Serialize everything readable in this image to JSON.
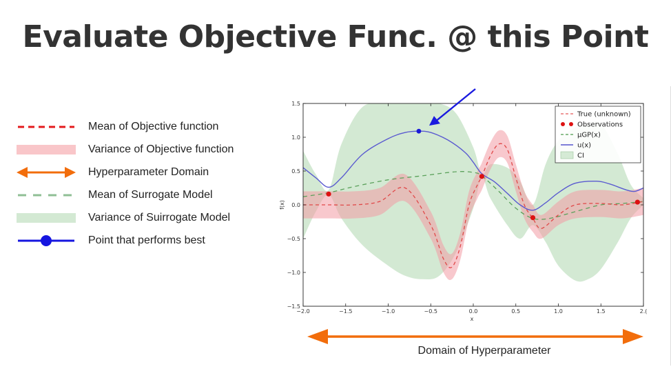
{
  "page_title": "Evaluate Objective Func. @ this Point",
  "legend_items": [
    {
      "label": "Mean of Objective function",
      "symbol": "red-dashed-line-icon",
      "color": "#e31a1c"
    },
    {
      "label": "Variance of Objective function",
      "symbol": "pink-band-icon",
      "color": "#f9c6c9"
    },
    {
      "label": "Hyperparameter Domain",
      "symbol": "orange-double-arrow-icon",
      "color": "#f26d0b"
    },
    {
      "label": "Mean of Surrogate Model",
      "symbol": "green-dashed-line-icon",
      "color": "#8fbf95"
    },
    {
      "label": "Variance of Suirrogate Model",
      "symbol": "green-band-icon",
      "color": "#d3e9d3"
    },
    {
      "label": "Point that performs best",
      "symbol": "blue-dot-line-icon",
      "color": "#1515e0"
    }
  ],
  "domain_label": "Domain of Hyperparameter",
  "chart_data": {
    "type": "line",
    "xlim": [
      -2.0,
      2.0
    ],
    "ylim": [
      -1.5,
      1.5
    ],
    "xlabel": "x",
    "ylabel": "f(x)",
    "xticks": [
      -2.0,
      -1.5,
      -1.0,
      -0.5,
      0.0,
      0.5,
      1.0,
      1.5,
      2.0
    ],
    "xtick_labels": [
      "−2.0",
      "−1.5",
      "−1.0",
      "−0.5",
      "0.0",
      "0.5",
      "1.0",
      "1.5",
      "2.("
    ],
    "yticks": [
      1.5,
      1.0,
      0.5,
      0.0,
      -0.5,
      -1.0,
      -1.5
    ],
    "ytick_labels": [
      "1.5",
      "1.0",
      "0.5",
      "0.0",
      "−0.5",
      "−1.0",
      "−1.5"
    ],
    "legend_position": "top-right",
    "legend_entries": [
      {
        "label": "True (unknown)",
        "style": "dashed",
        "color": "#e55b5b"
      },
      {
        "label": "Observations",
        "style": "dots",
        "color": "#dd1111"
      },
      {
        "label": "μGP(x)",
        "style": "dashed",
        "color": "#4c9a4c"
      },
      {
        "label": "u(x)",
        "style": "solid",
        "color": "#5555cc"
      },
      {
        "label": "CI",
        "style": "patch",
        "color": "#d5ead5"
      }
    ],
    "series": [
      {
        "name": "True (unknown)",
        "x": [
          -2.0,
          -1.7,
          -1.4,
          -1.1,
          -0.8,
          -0.5,
          -0.35,
          -0.25,
          -0.15,
          -0.05,
          0.05,
          0.1,
          0.2,
          0.3,
          0.4,
          0.5,
          0.6,
          0.7,
          0.8,
          1.0,
          1.2,
          1.5,
          1.75,
          2.0
        ],
        "y": [
          0.0,
          0.0,
          0.0,
          0.05,
          0.25,
          -0.3,
          -0.8,
          -0.92,
          -0.6,
          0.0,
          0.3,
          0.42,
          0.72,
          0.9,
          0.82,
          0.4,
          0.0,
          -0.2,
          -0.35,
          -0.15,
          0.0,
          0.02,
          0.0,
          0.05
        ]
      },
      {
        "name": "Observations",
        "x": [
          -1.7,
          0.1,
          0.7,
          1.93
        ],
        "y": [
          0.16,
          0.42,
          -0.19,
          0.04
        ]
      },
      {
        "name": "μGP(x)",
        "x": [
          -2.0,
          -1.7,
          -1.4,
          -1.0,
          -0.6,
          -0.2,
          0.0,
          0.1,
          0.3,
          0.5,
          0.7,
          0.9,
          1.2,
          1.5,
          1.75,
          2.0
        ],
        "y": [
          0.12,
          0.18,
          0.27,
          0.37,
          0.43,
          0.49,
          0.48,
          0.43,
          0.2,
          -0.05,
          -0.2,
          -0.2,
          -0.1,
          0.0,
          0.02,
          0.05
        ]
      },
      {
        "name": "u(x)",
        "x": [
          -2.0,
          -1.85,
          -1.7,
          -1.55,
          -1.3,
          -1.0,
          -0.8,
          -0.64,
          -0.5,
          -0.3,
          -0.1,
          0.0,
          0.1,
          0.25,
          0.4,
          0.55,
          0.7,
          0.85,
          1.0,
          1.2,
          1.45,
          1.6,
          1.8,
          1.9,
          2.0
        ],
        "y": [
          0.55,
          0.4,
          0.26,
          0.4,
          0.75,
          0.98,
          1.07,
          1.09,
          1.07,
          0.96,
          0.78,
          0.63,
          0.46,
          0.34,
          0.17,
          0.0,
          -0.08,
          0.03,
          0.18,
          0.32,
          0.35,
          0.31,
          0.22,
          0.2,
          0.25
        ]
      },
      {
        "name": "Objective variance band",
        "x": [
          -2.0,
          -1.7,
          -1.4,
          -1.1,
          -0.8,
          -0.5,
          -0.35,
          -0.25,
          -0.15,
          -0.05,
          0.05,
          0.1,
          0.2,
          0.3,
          0.4,
          0.5,
          0.6,
          0.7,
          0.8,
          1.0,
          1.2,
          1.5,
          1.75,
          2.0
        ],
        "lower": [
          -0.2,
          -0.2,
          -0.2,
          -0.15,
          0.05,
          -0.5,
          -1.0,
          -1.1,
          -0.8,
          -0.2,
          0.1,
          0.22,
          0.52,
          0.7,
          0.62,
          0.2,
          -0.2,
          -0.4,
          -0.5,
          -0.3,
          -0.2,
          -0.18,
          -0.2,
          -0.15
        ],
        "upper": [
          0.2,
          0.2,
          0.2,
          0.25,
          0.45,
          -0.1,
          -0.6,
          -0.72,
          -0.4,
          0.2,
          0.5,
          0.62,
          0.92,
          1.1,
          1.02,
          0.6,
          0.2,
          0.0,
          -0.15,
          0.05,
          0.2,
          0.22,
          0.2,
          0.25
        ]
      },
      {
        "name": "CI",
        "x": [
          -2.0,
          -1.85,
          -1.7,
          -1.55,
          -1.3,
          -1.0,
          -0.8,
          -0.6,
          -0.4,
          -0.2,
          0.0,
          0.1,
          0.2,
          0.4,
          0.55,
          0.7,
          0.85,
          1.0,
          1.2,
          1.35,
          1.5,
          1.7,
          1.85,
          2.0
        ],
        "lower": [
          -0.5,
          -0.1,
          0.15,
          -0.2,
          -0.6,
          -0.9,
          -1.05,
          -1.1,
          -1.05,
          -0.7,
          -0.05,
          0.4,
          0.1,
          -0.3,
          -0.5,
          -0.3,
          -0.55,
          -0.9,
          -1.12,
          -1.1,
          -0.95,
          -0.55,
          -0.2,
          0.0
        ],
        "upper": [
          0.8,
          0.45,
          0.22,
          0.9,
          1.45,
          1.5,
          1.5,
          1.5,
          1.5,
          1.35,
          0.85,
          0.45,
          0.6,
          0.55,
          0.35,
          0.0,
          0.6,
          0.95,
          1.15,
          1.2,
          1.2,
          0.75,
          0.3,
          0.1
        ]
      }
    ],
    "best_point": {
      "x": -0.64,
      "y": 1.09
    }
  }
}
